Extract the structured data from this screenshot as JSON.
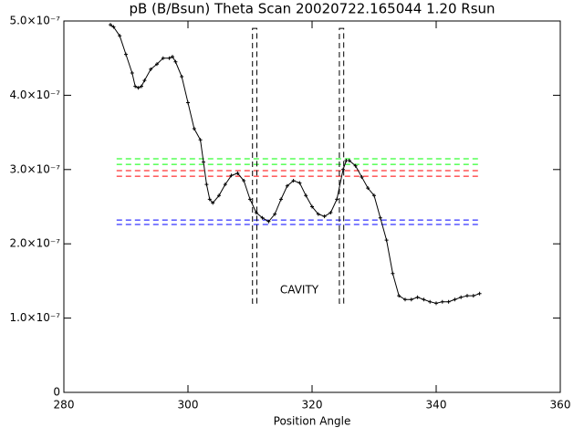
{
  "chart_data": {
    "type": "line",
    "title": "pB (B/Bsun) Theta Scan 20020722.165044 1.20 Rsun",
    "x_label": "Position Angle",
    "annotation": "CAVITY",
    "xlim": [
      280,
      360
    ],
    "xticks": [
      280,
      300,
      320,
      340,
      360
    ],
    "ylim": [
      0,
      5e-07
    ],
    "yticks": [
      {
        "value": 0,
        "label": "0"
      },
      {
        "value": 1e-07,
        "label": "1.0×10⁻⁷"
      },
      {
        "value": 2e-07,
        "label": "2.0×10⁻⁷"
      },
      {
        "value": 3e-07,
        "label": "3.0×10⁻⁷"
      },
      {
        "value": 4e-07,
        "label": "4.0×10⁻⁷"
      },
      {
        "value": 5e-07,
        "label": "5.0×10⁻⁷"
      }
    ],
    "color": "#000000",
    "x": [
      287.5,
      288,
      289,
      290,
      291,
      291.5,
      292,
      292.5,
      293,
      294,
      295,
      296,
      297,
      297.5,
      298,
      299,
      300,
      301,
      302,
      302.5,
      303,
      303.5,
      304,
      305,
      306,
      307,
      308,
      309,
      310,
      311,
      312,
      313,
      314,
      315,
      316,
      317,
      318,
      319,
      320,
      321,
      322,
      323,
      324,
      325,
      325.5,
      326,
      327,
      328,
      329,
      330,
      331,
      332,
      333,
      334,
      335,
      336,
      337,
      338,
      339,
      340,
      341,
      342,
      343,
      344,
      345,
      346,
      347
    ],
    "values": [
      4.95e-07,
      4.92e-07,
      4.8e-07,
      4.55e-07,
      4.3e-07,
      4.12e-07,
      4.1e-07,
      4.12e-07,
      4.2e-07,
      4.35e-07,
      4.42e-07,
      4.5e-07,
      4.5e-07,
      4.52e-07,
      4.45e-07,
      4.25e-07,
      3.9e-07,
      3.55e-07,
      3.4e-07,
      3.1e-07,
      2.8e-07,
      2.6e-07,
      2.55e-07,
      2.65e-07,
      2.8e-07,
      2.92e-07,
      2.95e-07,
      2.85e-07,
      2.6e-07,
      2.42e-07,
      2.35e-07,
      2.3e-07,
      2.4e-07,
      2.6e-07,
      2.78e-07,
      2.85e-07,
      2.82e-07,
      2.65e-07,
      2.5e-07,
      2.4e-07,
      2.37e-07,
      2.42e-07,
      2.6e-07,
      3e-07,
      3.12e-07,
      3.12e-07,
      3.05e-07,
      2.9e-07,
      2.75e-07,
      2.65e-07,
      2.35e-07,
      2.05e-07,
      1.6e-07,
      1.3e-07,
      1.25e-07,
      1.25e-07,
      1.28e-07,
      1.25e-07,
      1.22e-07,
      1.2e-07,
      1.22e-07,
      1.22e-07,
      1.25e-07,
      1.28e-07,
      1.3e-07,
      1.3e-07,
      1.33e-07
    ],
    "hlines_xrange": [
      288.5,
      347.2
    ],
    "hlines": [
      {
        "color": "#00ff00",
        "values": [
          3.145e-07,
          3.07e-07
        ]
      },
      {
        "color": "#ff0000",
        "values": [
          2.985e-07,
          2.91e-07
        ]
      },
      {
        "color": "#0000ff",
        "values": [
          2.32e-07,
          2.26e-07
        ]
      }
    ],
    "boxes": [
      {
        "x": [
          310.4,
          311.1
        ],
        "y": [
          1.2e-07,
          4.9e-07
        ]
      },
      {
        "x": [
          324.4,
          325.1
        ],
        "y": [
          1.2e-07,
          4.9e-07
        ]
      }
    ],
    "annotation_color": "#ff0000"
  }
}
